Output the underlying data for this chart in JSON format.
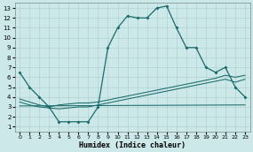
{
  "xlabel": "Humidex (Indice chaleur)",
  "bg_color": "#cce8e8",
  "grid_color": "#aacccc",
  "line_color": "#1a6b6b",
  "xlim": [
    -0.5,
    23.5
  ],
  "ylim": [
    0.5,
    13.5
  ],
  "xticks": [
    0,
    1,
    2,
    3,
    4,
    5,
    6,
    7,
    8,
    9,
    10,
    11,
    12,
    13,
    14,
    15,
    16,
    17,
    18,
    19,
    20,
    21,
    22,
    23
  ],
  "yticks": [
    1,
    2,
    3,
    4,
    5,
    6,
    7,
    8,
    9,
    10,
    11,
    12,
    13
  ],
  "s1x": [
    0,
    1,
    2,
    3,
    4,
    5,
    6,
    7,
    8,
    9,
    10,
    11,
    12,
    13,
    14,
    15,
    16,
    17,
    18,
    19,
    20,
    21,
    22,
    23
  ],
  "s1y": [
    6.5,
    5.0,
    4.0,
    3.0,
    1.5,
    1.5,
    1.5,
    1.5,
    3.0,
    9.0,
    11.0,
    12.2,
    12.0,
    12.0,
    13.0,
    13.2,
    11.0,
    9.0,
    9.0,
    7.0,
    6.5,
    7.0,
    5.0,
    4.0
  ],
  "s2x": [
    0,
    1,
    2,
    3,
    4,
    5,
    6,
    7,
    8,
    9,
    10,
    11,
    12,
    13,
    14,
    15,
    16,
    17,
    18,
    19,
    20,
    21,
    22,
    23
  ],
  "s2y": [
    3.8,
    3.5,
    3.2,
    3.0,
    3.2,
    3.3,
    3.4,
    3.4,
    3.5,
    3.7,
    3.9,
    4.1,
    4.3,
    4.5,
    4.7,
    4.9,
    5.1,
    5.3,
    5.5,
    5.7,
    5.9,
    6.2,
    6.0,
    6.2
  ],
  "s3x": [
    0,
    1,
    2,
    3,
    4,
    5,
    6,
    7,
    8,
    9,
    10,
    11,
    12,
    13,
    14,
    15,
    16,
    17,
    18,
    19,
    20,
    21,
    22,
    23
  ],
  "s3y": [
    3.5,
    3.2,
    3.0,
    2.9,
    2.8,
    2.9,
    3.0,
    3.0,
    3.2,
    3.4,
    3.6,
    3.8,
    4.0,
    4.2,
    4.4,
    4.6,
    4.8,
    5.0,
    5.2,
    5.4,
    5.6,
    5.8,
    5.5,
    5.8
  ],
  "s4x": [
    0,
    23
  ],
  "s4y": [
    3.1,
    3.2
  ],
  "xlabel_size": 6.0,
  "tick_size_x": 4.5,
  "tick_size_y": 5.0
}
